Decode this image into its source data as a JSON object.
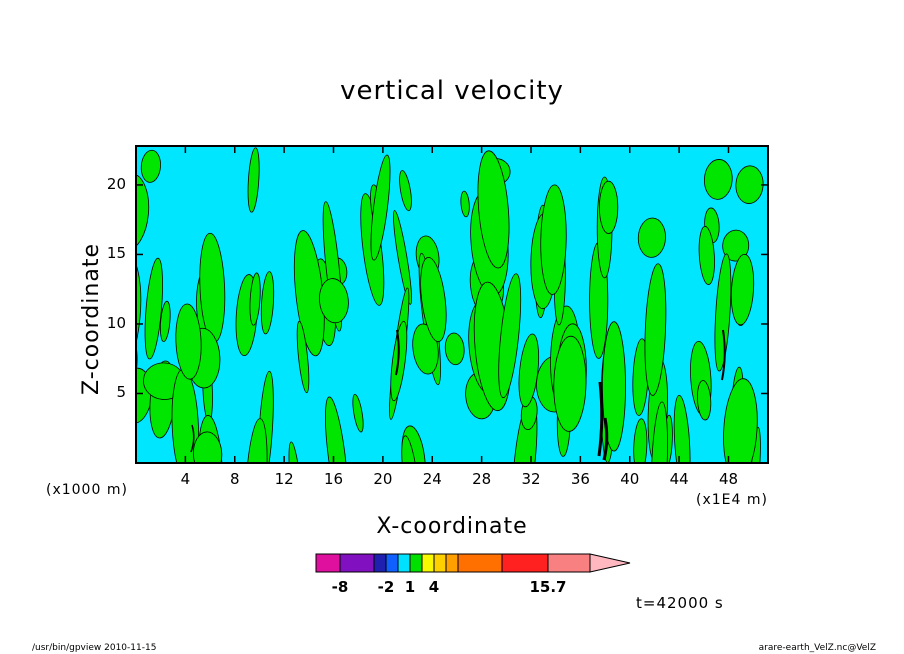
{
  "chart_data": {
    "type": "contour",
    "title": "vertical velocity",
    "xlabel": "X-coordinate",
    "ylabel": "Z-coordinate",
    "x_unit": "(x1E4 m)",
    "y_unit": "(x1000 m)",
    "x_ticks": [
      "4",
      "8",
      "12",
      "16",
      "20",
      "24",
      "28",
      "32",
      "36",
      "40",
      "44",
      "48"
    ],
    "y_ticks": [
      "5",
      "10",
      "15",
      "20"
    ],
    "xlim": [
      0,
      51.2
    ],
    "ylim": [
      0,
      22.8
    ],
    "colorbar": {
      "labels": [
        "-8",
        "-2",
        "1",
        "4",
        "15.7"
      ],
      "colors": [
        "#e0109e",
        "#8010c0",
        "#2020b0",
        "#1060ff",
        "#00e0ff",
        "#00e000",
        "#f8f800",
        "#ffd000",
        "#ffa000",
        "#ff7000",
        "#ff2020",
        "#f88080",
        "#ffb8c0"
      ]
    },
    "fill_colors": {
      "negative": "#00e6ff",
      "positive": "#00e600",
      "strong": "#000000"
    }
  },
  "time_label": "t=42000 s",
  "footer": {
    "left": "/usr/bin/gpview  2010-11-15",
    "right": "arare-earth_VelZ.nc@VelZ"
  }
}
